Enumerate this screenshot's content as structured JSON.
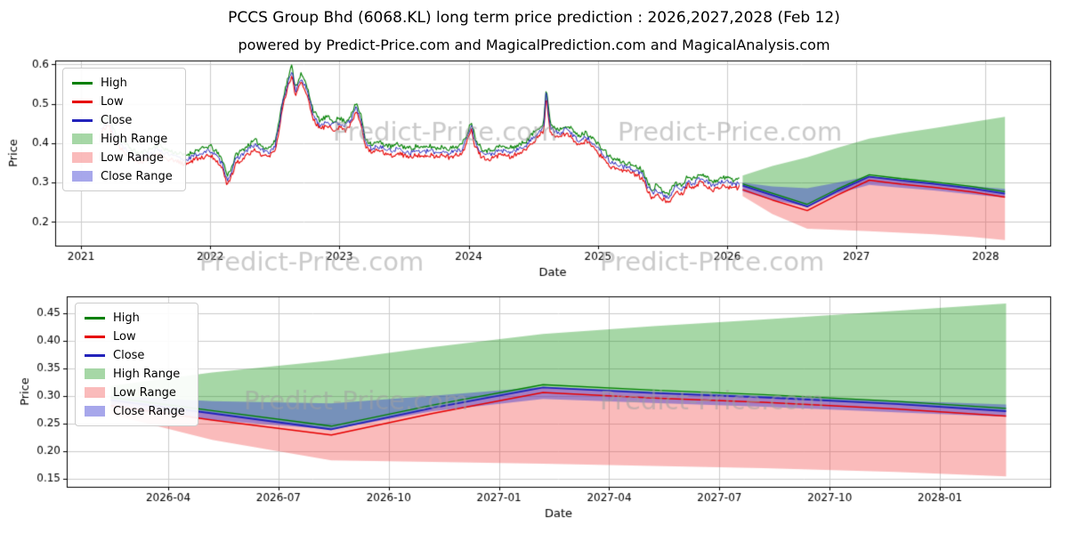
{
  "page": {
    "title": "PCCS Group Bhd (6068.KL) long term price prediction : 2026,2027,2028 (Feb 12)",
    "subtitle": "powered by Predict-Price.com and MagicalPrediction.com and MagicalAnalysis.com",
    "watermark_text": "Predict-Price.com"
  },
  "colors": {
    "high": "#008000",
    "low": "#e60000",
    "close": "#2222bb",
    "high_range": "rgba(0,140,0,0.35)",
    "low_range": "rgba(240,60,60,0.35)",
    "close_range": "rgba(60,60,210,0.45)",
    "grid": "#cccccc",
    "spine": "#000000",
    "watermark": "rgba(160,160,160,0.55)"
  },
  "legend": [
    {
      "label": "High",
      "type": "line",
      "color_key": "high"
    },
    {
      "label": "Low",
      "type": "line",
      "color_key": "low"
    },
    {
      "label": "Close",
      "type": "line",
      "color_key": "close"
    },
    {
      "label": "High Range",
      "type": "patch",
      "color_key": "high_range"
    },
    {
      "label": "Low Range",
      "type": "patch",
      "color_key": "low_range"
    },
    {
      "label": "Close Range",
      "type": "patch",
      "color_key": "close_range"
    }
  ],
  "prediction": {
    "x": [
      2026.12,
      2026.35,
      2026.62,
      2026.85,
      2027.1,
      2027.35,
      2027.6,
      2027.9,
      2028.15
    ],
    "close": [
      0.292,
      0.268,
      0.239,
      0.278,
      0.315,
      0.305,
      0.297,
      0.285,
      0.272
    ],
    "low": [
      0.282,
      0.256,
      0.229,
      0.268,
      0.306,
      0.296,
      0.288,
      0.276,
      0.263
    ],
    "high": [
      0.297,
      0.273,
      0.245,
      0.283,
      0.32,
      0.31,
      0.302,
      0.29,
      0.277
    ],
    "high_top": [
      0.318,
      0.342,
      0.364,
      0.388,
      0.412,
      0.426,
      0.438,
      0.454,
      0.467
    ],
    "low_bottom": [
      0.266,
      0.22,
      0.183,
      0.18,
      0.177,
      0.173,
      0.169,
      0.162,
      0.154
    ],
    "close_top": [
      0.3,
      0.29,
      0.286,
      0.3,
      0.316,
      0.308,
      0.3,
      0.291,
      0.284
    ],
    "close_bottom": [
      0.278,
      0.256,
      0.239,
      0.272,
      0.294,
      0.287,
      0.28,
      0.27,
      0.262
    ]
  },
  "chart_data": [
    {
      "type": "line",
      "title": "",
      "xlabel": "Date",
      "ylabel": "Price",
      "xlim": [
        2020.8,
        2028.5
      ],
      "ylim": [
        0.14,
        0.61
      ],
      "grid": true,
      "legend_position": "upper left",
      "x_ticks": {
        "values": [
          2021,
          2022,
          2023,
          2024,
          2025,
          2026,
          2027,
          2028
        ],
        "labels": [
          "2021",
          "2022",
          "2023",
          "2024",
          "2025",
          "2026",
          "2027",
          "2028"
        ]
      },
      "y_ticks": {
        "values": [
          0.2,
          0.3,
          0.4,
          0.5,
          0.6
        ],
        "labels": [
          "0.2",
          "0.3",
          "0.4",
          "0.5",
          "0.6"
        ]
      },
      "history": {
        "noise": {
          "seed": 11,
          "jitter": 0.006,
          "step": 0.008,
          "hl_offset": 0.011
        },
        "anchors": [
          [
            2021.15,
            0.435
          ],
          [
            2021.18,
            0.45
          ],
          [
            2021.22,
            0.455
          ],
          [
            2021.25,
            0.425
          ],
          [
            2021.3,
            0.4
          ],
          [
            2021.35,
            0.385
          ],
          [
            2021.4,
            0.372
          ],
          [
            2021.45,
            0.362
          ],
          [
            2021.5,
            0.37
          ],
          [
            2021.55,
            0.376
          ],
          [
            2021.6,
            0.386
          ],
          [
            2021.65,
            0.374
          ],
          [
            2021.7,
            0.368
          ],
          [
            2021.75,
            0.364
          ],
          [
            2021.8,
            0.358
          ],
          [
            2021.85,
            0.364
          ],
          [
            2021.9,
            0.372
          ],
          [
            2021.95,
            0.376
          ],
          [
            2022.0,
            0.382
          ],
          [
            2022.05,
            0.366
          ],
          [
            2022.1,
            0.344
          ],
          [
            2022.13,
            0.306
          ],
          [
            2022.17,
            0.332
          ],
          [
            2022.2,
            0.36
          ],
          [
            2022.25,
            0.372
          ],
          [
            2022.3,
            0.386
          ],
          [
            2022.35,
            0.396
          ],
          [
            2022.4,
            0.382
          ],
          [
            2022.45,
            0.376
          ],
          [
            2022.5,
            0.392
          ],
          [
            2022.53,
            0.44
          ],
          [
            2022.56,
            0.5
          ],
          [
            2022.6,
            0.552
          ],
          [
            2022.63,
            0.585
          ],
          [
            2022.66,
            0.532
          ],
          [
            2022.7,
            0.565
          ],
          [
            2022.73,
            0.548
          ],
          [
            2022.76,
            0.52
          ],
          [
            2022.8,
            0.47
          ],
          [
            2022.85,
            0.446
          ],
          [
            2022.9,
            0.456
          ],
          [
            2022.95,
            0.446
          ],
          [
            2023.0,
            0.452
          ],
          [
            2023.05,
            0.444
          ],
          [
            2023.1,
            0.466
          ],
          [
            2023.13,
            0.492
          ],
          [
            2023.17,
            0.455
          ],
          [
            2023.2,
            0.402
          ],
          [
            2023.25,
            0.386
          ],
          [
            2023.3,
            0.392
          ],
          [
            2023.35,
            0.386
          ],
          [
            2023.4,
            0.38
          ],
          [
            2023.45,
            0.386
          ],
          [
            2023.5,
            0.38
          ],
          [
            2023.55,
            0.376
          ],
          [
            2023.6,
            0.382
          ],
          [
            2023.65,
            0.376
          ],
          [
            2023.7,
            0.382
          ],
          [
            2023.75,
            0.376
          ],
          [
            2023.8,
            0.38
          ],
          [
            2023.85,
            0.375
          ],
          [
            2023.9,
            0.38
          ],
          [
            2023.95,
            0.386
          ],
          [
            2024.0,
            0.425
          ],
          [
            2024.02,
            0.447
          ],
          [
            2024.05,
            0.402
          ],
          [
            2024.1,
            0.376
          ],
          [
            2024.15,
            0.37
          ],
          [
            2024.2,
            0.376
          ],
          [
            2024.25,
            0.382
          ],
          [
            2024.3,
            0.376
          ],
          [
            2024.35,
            0.38
          ],
          [
            2024.4,
            0.386
          ],
          [
            2024.45,
            0.396
          ],
          [
            2024.5,
            0.415
          ],
          [
            2024.55,
            0.432
          ],
          [
            2024.58,
            0.44
          ],
          [
            2024.6,
            0.532
          ],
          [
            2024.63,
            0.442
          ],
          [
            2024.66,
            0.43
          ],
          [
            2024.7,
            0.424
          ],
          [
            2024.75,
            0.436
          ],
          [
            2024.8,
            0.424
          ],
          [
            2024.85,
            0.406
          ],
          [
            2024.9,
            0.416
          ],
          [
            2024.95,
            0.406
          ],
          [
            2025.0,
            0.386
          ],
          [
            2025.05,
            0.37
          ],
          [
            2025.1,
            0.352
          ],
          [
            2025.15,
            0.346
          ],
          [
            2025.2,
            0.34
          ],
          [
            2025.25,
            0.336
          ],
          [
            2025.3,
            0.33
          ],
          [
            2025.35,
            0.32
          ],
          [
            2025.38,
            0.292
          ],
          [
            2025.42,
            0.272
          ],
          [
            2025.45,
            0.282
          ],
          [
            2025.5,
            0.27
          ],
          [
            2025.55,
            0.262
          ],
          [
            2025.6,
            0.29
          ],
          [
            2025.65,
            0.28
          ],
          [
            2025.7,
            0.308
          ],
          [
            2025.73,
            0.296
          ],
          [
            2025.77,
            0.306
          ],
          [
            2025.8,
            0.314
          ],
          [
            2025.85,
            0.3
          ],
          [
            2025.9,
            0.292
          ],
          [
            2025.95,
            0.3
          ],
          [
            2026.0,
            0.302
          ],
          [
            2026.05,
            0.296
          ],
          [
            2026.1,
            0.3
          ]
        ]
      }
    },
    {
      "type": "area",
      "title": "",
      "xlabel": "Date",
      "ylabel": "Price",
      "xlim": [
        2026.02,
        2028.25
      ],
      "ylim": [
        0.135,
        0.48
      ],
      "grid": true,
      "legend_position": "upper left",
      "x_ticks": {
        "values": [
          2026.25,
          2026.5,
          2026.75,
          2027.0,
          2027.25,
          2027.5,
          2027.75,
          2028.0
        ],
        "labels": [
          "2026-04",
          "2026-07",
          "2026-10",
          "2027-01",
          "2027-04",
          "2027-07",
          "2027-10",
          "2028-01"
        ]
      },
      "y_ticks": {
        "values": [
          0.15,
          0.2,
          0.25,
          0.3,
          0.35,
          0.4,
          0.45
        ],
        "labels": [
          "0.15",
          "0.20",
          "0.25",
          "0.30",
          "0.35",
          "0.40",
          "0.45"
        ]
      }
    }
  ]
}
